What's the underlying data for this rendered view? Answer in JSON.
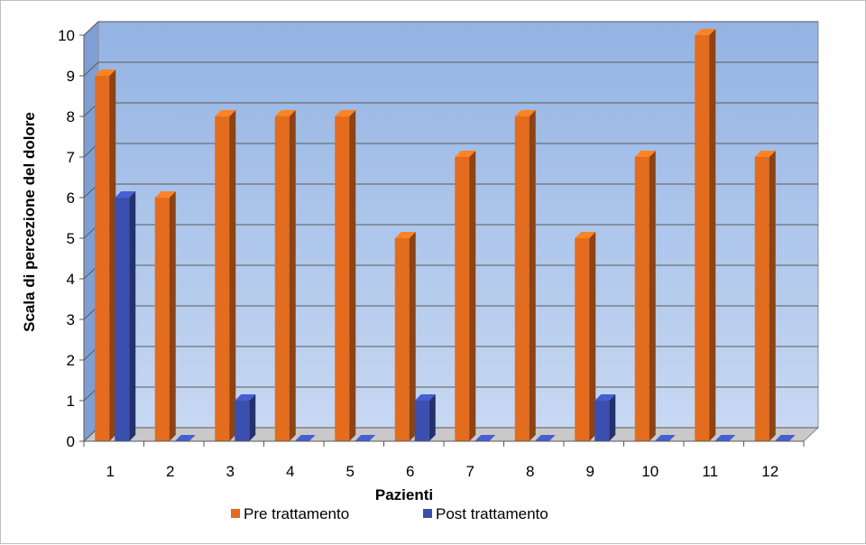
{
  "chart_data": {
    "type": "bar",
    "categories": [
      "1",
      "2",
      "3",
      "4",
      "5",
      "6",
      "7",
      "8",
      "9",
      "10",
      "11",
      "12"
    ],
    "series": [
      {
        "name": "Pre trattamento",
        "values": [
          9,
          6,
          8,
          8,
          8,
          5,
          7,
          8,
          5,
          7,
          10,
          7
        ],
        "color": "#e36c1e"
      },
      {
        "name": "Post trattamento",
        "values": [
          6,
          0,
          1,
          0,
          0,
          1,
          0,
          0,
          1,
          0,
          0,
          0
        ],
        "color": "#3b4fb0"
      }
    ],
    "xlabel": "Pazienti",
    "ylabel": "Scala di percezione del dolore",
    "ylim": [
      0,
      10
    ],
    "yticks": [
      "0",
      "1",
      "2",
      "3",
      "4",
      "5",
      "6",
      "7",
      "8",
      "9",
      "10"
    ],
    "grid": true,
    "legend_position": "bottom",
    "wall_color": "#a9c3ea"
  }
}
